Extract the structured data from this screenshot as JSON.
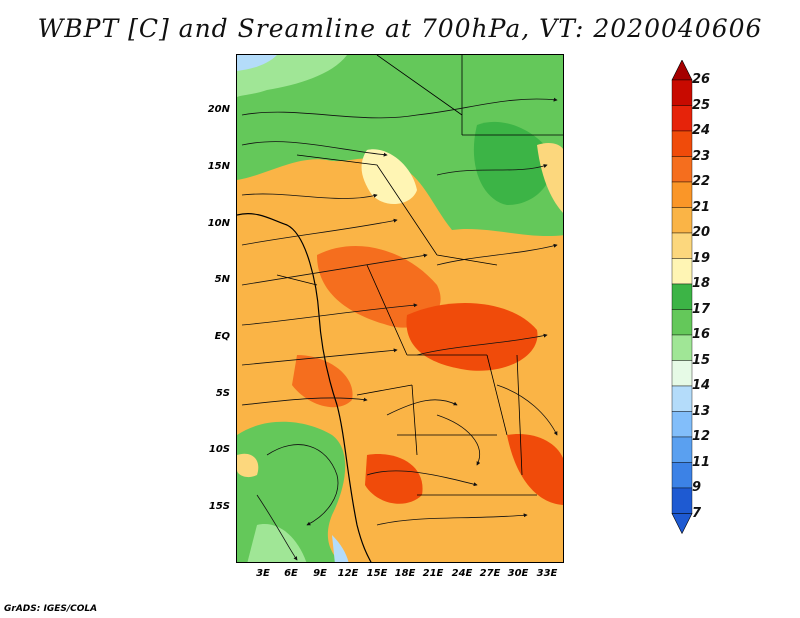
{
  "title": "WBPT [C] and Sreamline at 700hPa, VT: 2020040606",
  "footer": "GrADS: IGES/COLA",
  "map": {
    "lat_labels": [
      "20N",
      "15N",
      "10N",
      "5N",
      "EQ",
      "5S",
      "10S",
      "15S"
    ],
    "lon_labels": [
      "3E",
      "6E",
      "9E",
      "12E",
      "15E",
      "18E",
      "21E",
      "24E",
      "27E",
      "30E",
      "33E"
    ]
  },
  "colorbar": {
    "labels": [
      "26",
      "25",
      "24",
      "23",
      "22",
      "21",
      "20",
      "19",
      "18",
      "17",
      "16",
      "15",
      "14",
      "13",
      "12",
      "11",
      "9",
      "7"
    ],
    "colors": [
      "#a50000",
      "#c80a00",
      "#e6230a",
      "#f04b0a",
      "#f56e1e",
      "#fa9628",
      "#fab446",
      "#fcd77d",
      "#fff5b4",
      "#3cb446",
      "#64c85a",
      "#a0e696",
      "#e6fae6",
      "#b4dcfa",
      "#82befa",
      "#5aa0f0",
      "#3c82e6",
      "#1e5ad2"
    ],
    "top_arrow_color": "#a50000",
    "bottom_arrow_color": "#1e5ad2"
  }
}
